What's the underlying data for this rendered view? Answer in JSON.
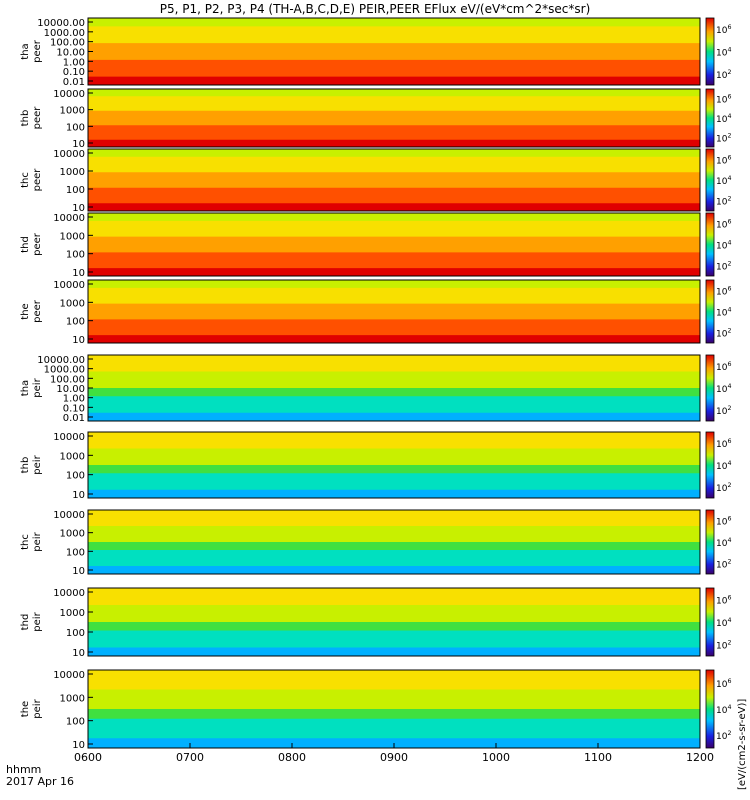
{
  "chart_data": {
    "type": "heatmap",
    "title": "P5, P1, P2, P3, P4 (TH-A,B,C,D,E) PEIR,PEER EFlux eV/(eV*cm^2*sec*sr)",
    "x": {
      "ticks": [
        "0600",
        "0700",
        "0800",
        "0900",
        "1000",
        "1100",
        "1200"
      ],
      "range_hours": [
        6,
        12
      ],
      "label_line1": "hhmm",
      "label_line2": "2017 Apr 16"
    },
    "colorbar": {
      "labels": [
        "10^2",
        "10^4",
        "10^6"
      ],
      "range_exponent": [
        1,
        7
      ],
      "title": "[eV/(cm2-s-sr-eV)]"
    },
    "panels": [
      {
        "id": "tha-peer",
        "probe": "tha",
        "species": "peer",
        "yticks": [
          "10000.00",
          "1000.00",
          "100.00",
          "10.00",
          "1.00",
          "0.10",
          "0.01"
        ],
        "cb_labels": [
          "10^2",
          "10^4",
          "10^6"
        ]
      },
      {
        "id": "thb-peer",
        "probe": "thb",
        "species": "peer",
        "yticks": [
          "10000",
          "1000",
          "100",
          "10"
        ],
        "cb_labels": [
          "10^2",
          "10^4",
          "10^6"
        ]
      },
      {
        "id": "thc-peer",
        "probe": "thc",
        "species": "peer",
        "yticks": [
          "10000",
          "1000",
          "100",
          "10"
        ],
        "cb_labels": [
          "10^2",
          "10^4",
          "10^6"
        ]
      },
      {
        "id": "thd-peer",
        "probe": "thd",
        "species": "peer",
        "yticks": [
          "10000",
          "1000",
          "100",
          "10"
        ],
        "cb_labels": [
          "10^2",
          "10^4",
          "10^6"
        ]
      },
      {
        "id": "the-peer",
        "probe": "the",
        "species": "peer",
        "yticks": [
          "10000",
          "1000",
          "100",
          "10"
        ],
        "cb_labels": [
          "10^2",
          "10^4",
          "10^6"
        ]
      },
      {
        "id": "tha-peir",
        "probe": "tha",
        "species": "peir",
        "yticks": [
          "10000.00",
          "1000.00",
          "100.00",
          "10.00",
          "1.00",
          "0.10",
          "0.01"
        ],
        "cb_labels": [
          "10^2",
          "10^4",
          "10^6"
        ]
      },
      {
        "id": "thb-peir",
        "probe": "thb",
        "species": "peir",
        "yticks": [
          "10000",
          "1000",
          "100",
          "10"
        ],
        "cb_labels": [
          "10^2",
          "10^4",
          "10^6"
        ]
      },
      {
        "id": "thc-peir",
        "probe": "thc",
        "species": "peir",
        "yticks": [
          "10000",
          "1000",
          "100",
          "10"
        ],
        "cb_labels": [
          "10^2",
          "10^4",
          "10^6"
        ]
      },
      {
        "id": "thd-peir",
        "probe": "thd",
        "species": "peir",
        "yticks": [
          "10000",
          "1000",
          "100",
          "10"
        ],
        "cb_labels": [
          "10^2",
          "10^4",
          "10^6"
        ]
      },
      {
        "id": "the-peir",
        "probe": "the",
        "species": "peir",
        "yticks": [
          "10000",
          "1000",
          "100",
          "10"
        ],
        "cb_labels": [
          "10^2",
          "10^4",
          "10^6"
        ]
      }
    ]
  }
}
